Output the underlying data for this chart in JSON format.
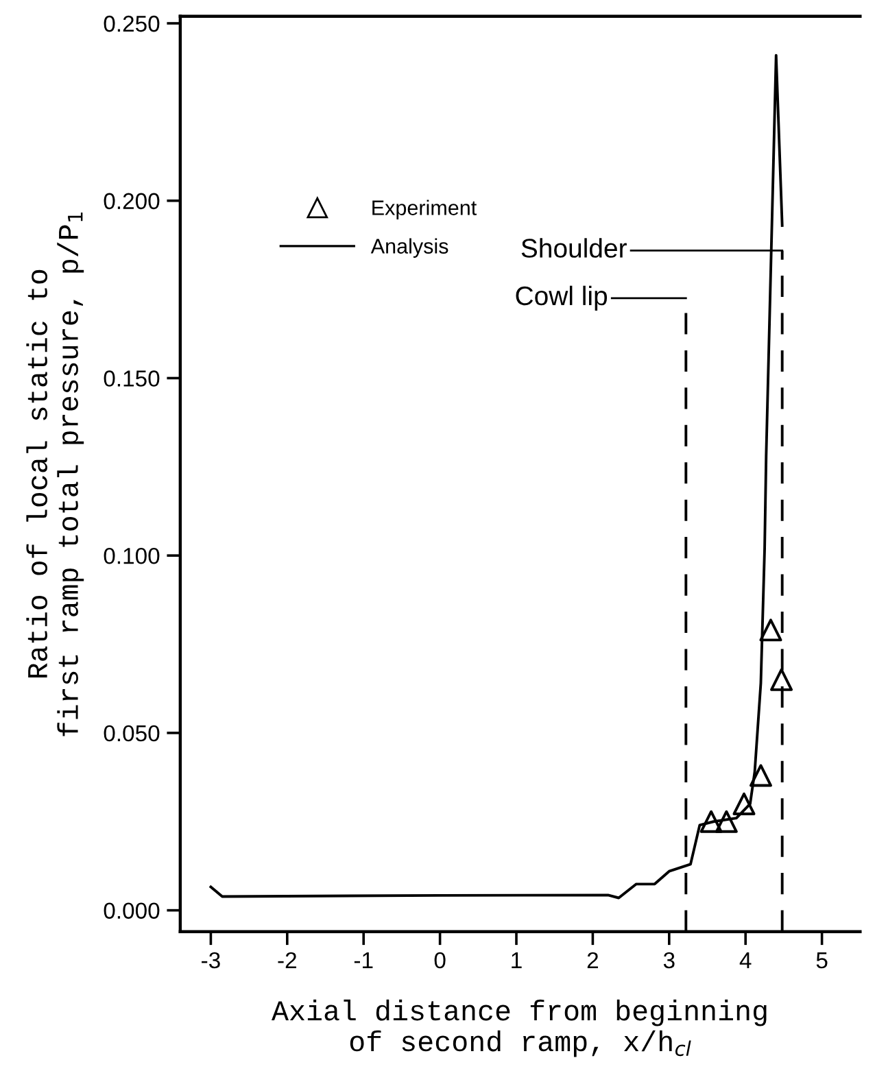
{
  "chart_data": {
    "type": "line",
    "xlabel": "Axial distance from beginning\nof second ramp, x/h$_{cl}$",
    "ylabel": "Ratio of local static to\nfirst ramp total pressure, p/P$_{1}$",
    "xlim": [
      -3.4,
      5.5
    ],
    "ylim": [
      -0.006,
      0.252
    ],
    "xticks": [
      -3,
      -2,
      -1,
      0,
      1,
      2,
      3,
      4,
      5
    ],
    "yticks": [
      {
        "value": 0,
        "label": "0.000"
      },
      {
        "value": 0.05,
        "label": "0.050"
      },
      {
        "value": 0.1,
        "label": "0.100"
      },
      {
        "value": 0.15,
        "label": "0.150"
      },
      {
        "value": 0.2,
        "label": "0.200"
      },
      {
        "value": 0.25,
        "label": "0.250"
      }
    ],
    "series": [
      {
        "name": "Experiment",
        "type": "scatter",
        "marker": "triangle",
        "color": "#000000",
        "x": [
          3.55,
          3.75,
          3.98,
          4.2,
          4.33,
          4.47
        ],
        "values": [
          0.025,
          0.025,
          0.03,
          0.038,
          0.079,
          0.065
        ]
      },
      {
        "name": "Analysis",
        "line_style": "solid",
        "color": "#000000",
        "x": [
          -3.0,
          -2.85,
          0.0,
          2.2,
          2.34,
          2.57,
          2.81,
          3.0,
          3.28,
          3.4,
          3.58,
          3.88,
          4.06,
          4.12,
          4.2,
          4.25,
          4.27,
          4.4,
          4.48
        ],
        "values": [
          0.0066,
          0.0039,
          0.0042,
          0.0043,
          0.0035,
          0.0074,
          0.0074,
          0.011,
          0.013,
          0.024,
          0.025,
          0.026,
          0.03,
          0.039,
          0.064,
          0.102,
          0.128,
          0.241,
          0.193
        ]
      }
    ],
    "ref_lines": [
      {
        "axis": "x",
        "value": 3.22,
        "label": "Cowl lip",
        "line_style": "dashed",
        "color": "#000000"
      },
      {
        "axis": "x",
        "value": 4.48,
        "label": "Shoulder",
        "line_style": "dashed",
        "color": "#000000"
      }
    ],
    "legend": "top left",
    "grid": false
  }
}
